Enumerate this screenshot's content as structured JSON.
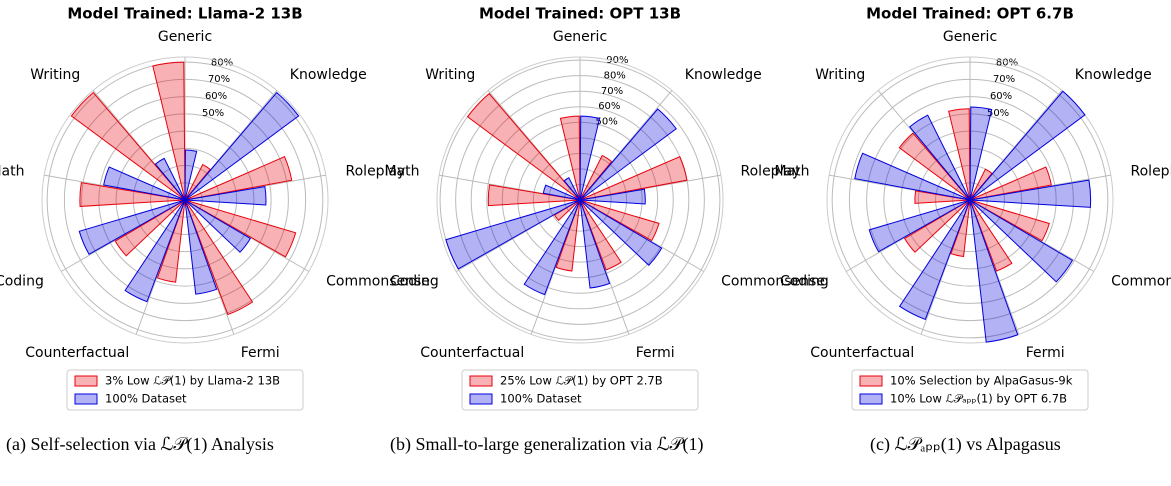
{
  "chart_data": [
    {
      "type": "polar-bar",
      "title": "Model Trained: Llama-2 13B",
      "caption": "(a) Self-selection via ℒ𝒫(1) Analysis",
      "categories": [
        "Generic",
        "Knowledge",
        "Roleplay",
        "Commonsense",
        "Fermi",
        "Counterfactual",
        "Coding",
        "Math",
        "Writing"
      ],
      "series": [
        {
          "name": "3% Low ℒ𝒫(1) by Llama-2 13B",
          "color": "#e8000b",
          "values": [
            80,
            23,
            63,
            67,
            71,
            48,
            47,
            61,
            82
          ]
        },
        {
          "name": "100% Dataset",
          "color": "#0000dd",
          "values": [
            29,
            82,
            47,
            44,
            55,
            63,
            64,
            48,
            27
          ]
        }
      ],
      "ylim": [
        0,
        83
      ],
      "yticks": [
        {
          "value": 10,
          "label": null
        },
        {
          "value": 20,
          "label": null
        },
        {
          "value": 30,
          "label": null
        },
        {
          "value": 40,
          "label": null
        },
        {
          "value": 50,
          "label": "50%"
        },
        {
          "value": 60,
          "label": "60%"
        },
        {
          "value": 70,
          "label": "70%"
        },
        {
          "value": 80,
          "label": "80%"
        }
      ],
      "grid": true
    },
    {
      "type": "polar-bar",
      "title": "Model Trained: OPT 13B",
      "caption": "(b) Small-to-large generalization via ℒ𝒫(1)",
      "categories": [
        "Generic",
        "Knowledge",
        "Roleplay",
        "Commonsense",
        "Fermi",
        "Counterfactual",
        "Coding",
        "Math",
        "Writing"
      ],
      "series": [
        {
          "name": "25% Low ℒ𝒫(1) by OPT 2.7B",
          "color": "#e8000b",
          "values": [
            54,
            32,
            70,
            53,
            48,
            46,
            19,
            59,
            90
          ]
        },
        {
          "name": "100% Dataset",
          "color": "#0000dd",
          "values": [
            54,
            77,
            42,
            61,
            57,
            65,
            90,
            24,
            16
          ]
        }
      ],
      "ylim": [
        0,
        92
      ],
      "yticks": [
        {
          "value": 10,
          "label": null
        },
        {
          "value": 20,
          "label": null
        },
        {
          "value": 30,
          "label": null
        },
        {
          "value": 40,
          "label": null
        },
        {
          "value": 50,
          "label": "50%"
        },
        {
          "value": 60,
          "label": "60%"
        },
        {
          "value": 70,
          "label": "70%"
        },
        {
          "value": 80,
          "label": "80%"
        },
        {
          "value": 90,
          "label": "90%"
        }
      ],
      "grid": true
    },
    {
      "type": "polar-bar",
      "title": "Model Trained: OPT 6.7B",
      "caption": "(c) ℒ𝒫ₐₚₚ(1) vs Alpagasus",
      "categories": [
        "Generic",
        "Knowledge",
        "Roleplay",
        "Commonsense",
        "Fermi",
        "Counterfactual",
        "Coding",
        "Math",
        "Writing"
      ],
      "series": [
        {
          "name": "10% Selection by AlpaGasus-9k",
          "color": "#e8000b",
          "values": [
            53,
            20,
            48,
            48,
            44,
            33,
            44,
            32,
            51
          ]
        },
        {
          "name": "10% Low ℒ𝒫ₐₚₚ(1) by OPT 6.7B",
          "color": "#0000dd",
          "values": [
            54,
            83,
            70,
            69,
            83,
            74,
            61,
            68,
            55
          ]
        }
      ],
      "ylim": [
        0,
        83
      ],
      "yticks": [
        {
          "value": 10,
          "label": null
        },
        {
          "value": 20,
          "label": null
        },
        {
          "value": 30,
          "label": null
        },
        {
          "value": 40,
          "label": null
        },
        {
          "value": 50,
          "label": "50%"
        },
        {
          "value": 60,
          "label": "60%"
        },
        {
          "value": 70,
          "label": "70%"
        },
        {
          "value": 80,
          "label": "80%"
        }
      ],
      "grid": true
    }
  ]
}
